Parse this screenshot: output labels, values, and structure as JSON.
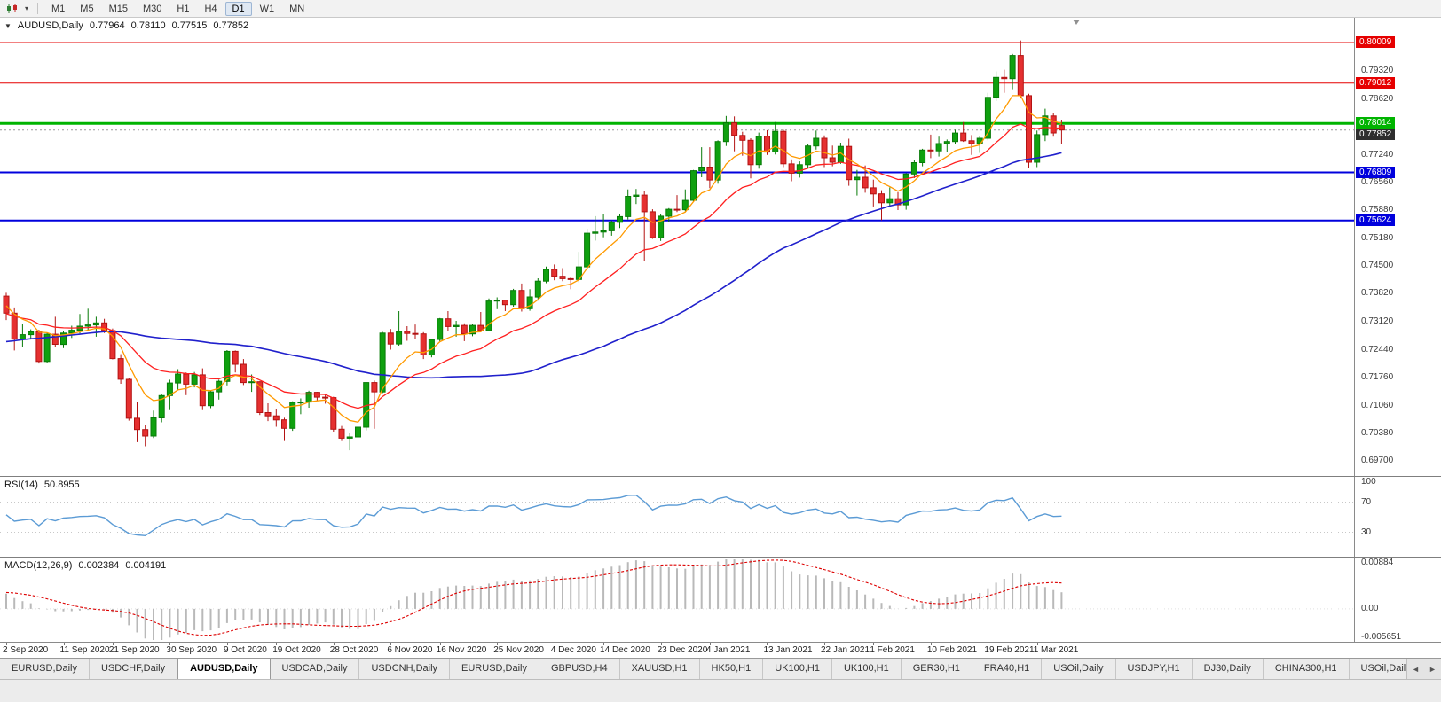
{
  "toolbar": {
    "timeframes": [
      "M1",
      "M5",
      "M15",
      "M30",
      "H1",
      "H4",
      "D1",
      "W1",
      "MN"
    ],
    "active_timeframe": "D1"
  },
  "chart": {
    "header": {
      "symbol": "AUDUSD,Daily",
      "open": "0.77964",
      "high": "0.78110",
      "low": "0.77515",
      "close": "0.77852"
    },
    "levels": [
      {
        "text": "0.80009",
        "value": 0.80009,
        "color": "#e60000",
        "width": 1
      },
      {
        "text": "0.79012",
        "value": 0.79012,
        "color": "#e60000",
        "width": 1
      },
      {
        "text": "0.78014",
        "value": 0.78014,
        "color": "#00b400",
        "width": 3
      },
      {
        "text": "0.76809",
        "value": 0.76809,
        "color": "#0000dd",
        "width": 2
      },
      {
        "text": "0.75624",
        "value": 0.75624,
        "color": "#0000dd",
        "width": 2
      }
    ],
    "bid": {
      "text": "0.77852",
      "value": 0.77852,
      "color": "#2e2e2e"
    },
    "axis_labels": [
      {
        "text": "0.79320",
        "value": 0.7932
      },
      {
        "text": "0.78620",
        "value": 0.7862
      },
      {
        "text": "0.77240",
        "value": 0.7724
      },
      {
        "text": "0.76560",
        "value": 0.7656
      },
      {
        "text": "0.75880",
        "value": 0.7588
      },
      {
        "text": "0.75180",
        "value": 0.7518
      },
      {
        "text": "0.74500",
        "value": 0.745
      },
      {
        "text": "0.73820",
        "value": 0.7382
      },
      {
        "text": "0.73120",
        "value": 0.7312
      },
      {
        "text": "0.72440",
        "value": 0.7244
      },
      {
        "text": "0.71760",
        "value": 0.7176
      },
      {
        "text": "0.71060",
        "value": 0.7106
      },
      {
        "text": "0.70380",
        "value": 0.7038
      },
      {
        "text": "0.69700",
        "value": 0.697
      }
    ]
  },
  "rsi": {
    "name": "RSI(14)",
    "value": "50.8955",
    "line_color": "#5b9bd5",
    "scale": [
      {
        "text": "100",
        "value": 100
      },
      {
        "text": "70",
        "value": 70
      },
      {
        "text": "30",
        "value": 30
      }
    ],
    "guides": [
      70,
      30
    ]
  },
  "macd": {
    "name": "MACD(12,26,9)",
    "value_main": "0.002384",
    "value_signal": "0.004191",
    "histogram_color": "#b9b9b9",
    "signal_color": "#dd0000",
    "scale": [
      {
        "text": "0.00884",
        "value": 0.00884
      },
      {
        "text": "0.00",
        "value": 0
      },
      {
        "text": "-0.005651",
        "value": -0.005651
      }
    ]
  },
  "tabs": {
    "items": [
      "EURUSD,Daily",
      "USDCHF,Daily",
      "AUDUSD,Daily",
      "USDCAD,Daily",
      "USDCNH,Daily",
      "EURUSD,Daily",
      "GBPUSD,H4",
      "XAUUSD,H1",
      "HK50,H1",
      "UK100,H1",
      "UK100,H1",
      "GER30,H1",
      "FRA40,H1",
      "USOil,Daily",
      "USDJPY,H1",
      "DJ30,Daily",
      "CHINA300,H1",
      "USOil,Daily"
    ],
    "active_index": 2
  },
  "chart_data": {
    "type": "candlestick",
    "symbol": "AUDUSD",
    "timeframe": "Daily",
    "visible_range": {
      "price_top": 0.80621,
      "price_bottom": 0.69328,
      "first_date": "2 Sep 2020",
      "last_date": "4 Mar 2021"
    },
    "x_ticks": [
      {
        "label": "2 Sep 2020",
        "i": 0
      },
      {
        "label": "11 Sep 2020",
        "i": 7
      },
      {
        "label": "21 Sep 2020",
        "i": 13
      },
      {
        "label": "30 Sep 2020",
        "i": 20
      },
      {
        "label": "9 Oct 2020",
        "i": 27
      },
      {
        "label": "19 Oct 2020",
        "i": 33
      },
      {
        "label": "28 Oct 2020",
        "i": 40
      },
      {
        "label": "6 Nov 2020",
        "i": 47
      },
      {
        "label": "16 Nov 2020",
        "i": 53
      },
      {
        "label": "25 Nov 2020",
        "i": 60
      },
      {
        "label": "4 Dec 2020",
        "i": 67
      },
      {
        "label": "14 Dec 2020",
        "i": 73
      },
      {
        "label": "23 Dec 2020",
        "i": 80
      },
      {
        "label": "4 Jan 2021",
        "i": 86
      },
      {
        "label": "13 Jan 2021",
        "i": 93
      },
      {
        "label": "22 Jan 2021",
        "i": 100
      },
      {
        "label": "1 Feb 2021",
        "i": 106
      },
      {
        "label": "10 Feb 2021",
        "i": 113
      },
      {
        "label": "19 Feb 2021",
        "i": 120
      },
      {
        "label": "1 Mar 2021",
        "i": 126
      }
    ],
    "candles": [
      [
        0.7376,
        0.7384,
        0.7317,
        0.7334
      ],
      [
        0.7334,
        0.7348,
        0.7242,
        0.727
      ],
      [
        0.727,
        0.7307,
        0.725,
        0.7281
      ],
      [
        0.7281,
        0.7294,
        0.7269,
        0.7288
      ],
      [
        0.7288,
        0.7293,
        0.721,
        0.7215
      ],
      [
        0.7215,
        0.7285,
        0.7211,
        0.7282
      ],
      [
        0.7282,
        0.7325,
        0.7251,
        0.7257
      ],
      [
        0.7257,
        0.7291,
        0.7248,
        0.7285
      ],
      [
        0.7285,
        0.7303,
        0.7273,
        0.7292
      ],
      [
        0.7292,
        0.7332,
        0.7284,
        0.7302
      ],
      [
        0.7302,
        0.7345,
        0.7289,
        0.7305
      ],
      [
        0.7305,
        0.7325,
        0.7276,
        0.731
      ],
      [
        0.731,
        0.732,
        0.7285,
        0.7291
      ],
      [
        0.7291,
        0.7296,
        0.722,
        0.7222
      ],
      [
        0.7222,
        0.7233,
        0.716,
        0.7171
      ],
      [
        0.7171,
        0.7175,
        0.7069,
        0.7075
      ],
      [
        0.7075,
        0.7115,
        0.7016,
        0.7047
      ],
      [
        0.7047,
        0.7058,
        0.7006,
        0.7031
      ],
      [
        0.7031,
        0.7094,
        0.7026,
        0.7076
      ],
      [
        0.7076,
        0.7135,
        0.7065,
        0.7131
      ],
      [
        0.7131,
        0.717,
        0.7095,
        0.7162
      ],
      [
        0.7162,
        0.7196,
        0.7145,
        0.7184
      ],
      [
        0.7184,
        0.7188,
        0.7132,
        0.7159
      ],
      [
        0.7159,
        0.7189,
        0.7151,
        0.7182
      ],
      [
        0.7182,
        0.7198,
        0.7095,
        0.7106
      ],
      [
        0.7106,
        0.7144,
        0.71,
        0.714
      ],
      [
        0.714,
        0.717,
        0.7121,
        0.7166
      ],
      [
        0.7166,
        0.7243,
        0.7156,
        0.724
      ],
      [
        0.724,
        0.7242,
        0.7188,
        0.7208
      ],
      [
        0.7208,
        0.7221,
        0.7157,
        0.7163
      ],
      [
        0.7163,
        0.7183,
        0.714,
        0.7165
      ],
      [
        0.7165,
        0.7166,
        0.7083,
        0.7089
      ],
      [
        0.7089,
        0.7112,
        0.7068,
        0.7081
      ],
      [
        0.7081,
        0.7098,
        0.7054,
        0.7071
      ],
      [
        0.7071,
        0.7076,
        0.7021,
        0.705
      ],
      [
        0.705,
        0.7117,
        0.7044,
        0.7114
      ],
      [
        0.7114,
        0.7124,
        0.7085,
        0.7115
      ],
      [
        0.7115,
        0.7143,
        0.7101,
        0.7139
      ],
      [
        0.7139,
        0.714,
        0.7119,
        0.7127
      ],
      [
        0.7127,
        0.7136,
        0.7111,
        0.7126
      ],
      [
        0.7126,
        0.7128,
        0.7042,
        0.7048
      ],
      [
        0.7048,
        0.7056,
        0.7021,
        0.7026
      ],
      [
        0.7026,
        0.7039,
        0.6996,
        0.7029
      ],
      [
        0.7029,
        0.706,
        0.7022,
        0.7053
      ],
      [
        0.7053,
        0.7164,
        0.7045,
        0.7163
      ],
      [
        0.7163,
        0.7168,
        0.7049,
        0.714
      ],
      [
        0.714,
        0.7288,
        0.7137,
        0.7285
      ],
      [
        0.7285,
        0.7295,
        0.7244,
        0.7258
      ],
      [
        0.7258,
        0.7339,
        0.7254,
        0.7289
      ],
      [
        0.7289,
        0.7302,
        0.7266,
        0.7284
      ],
      [
        0.7284,
        0.7306,
        0.727,
        0.7283
      ],
      [
        0.7283,
        0.7287,
        0.7221,
        0.7231
      ],
      [
        0.7231,
        0.727,
        0.7225,
        0.7269
      ],
      [
        0.7269,
        0.7322,
        0.7264,
        0.732
      ],
      [
        0.732,
        0.7339,
        0.7289,
        0.7301
      ],
      [
        0.7301,
        0.7315,
        0.7276,
        0.7304
      ],
      [
        0.7304,
        0.7309,
        0.7265,
        0.7283
      ],
      [
        0.7283,
        0.7307,
        0.7277,
        0.7304
      ],
      [
        0.7304,
        0.7337,
        0.7287,
        0.7291
      ],
      [
        0.7291,
        0.737,
        0.7289,
        0.7364
      ],
      [
        0.7364,
        0.7373,
        0.7344,
        0.7366
      ],
      [
        0.7366,
        0.7367,
        0.7339,
        0.7355
      ],
      [
        0.7355,
        0.7394,
        0.735,
        0.739
      ],
      [
        0.739,
        0.7407,
        0.7338,
        0.7345
      ],
      [
        0.7345,
        0.7393,
        0.734,
        0.7374
      ],
      [
        0.7374,
        0.742,
        0.7365,
        0.7413
      ],
      [
        0.7413,
        0.7449,
        0.7408,
        0.7442
      ],
      [
        0.7442,
        0.7454,
        0.7415,
        0.7425
      ],
      [
        0.7425,
        0.7445,
        0.7413,
        0.7419
      ],
      [
        0.7419,
        0.7424,
        0.7393,
        0.7417
      ],
      [
        0.7417,
        0.7485,
        0.741,
        0.7448
      ],
      [
        0.7448,
        0.7542,
        0.7442,
        0.7531
      ],
      [
        0.7531,
        0.7573,
        0.7513,
        0.7534
      ],
      [
        0.7534,
        0.7578,
        0.7521,
        0.7537
      ],
      [
        0.7537,
        0.7562,
        0.7525,
        0.7558
      ],
      [
        0.7558,
        0.7578,
        0.7544,
        0.7572
      ],
      [
        0.7572,
        0.7639,
        0.7565,
        0.7622
      ],
      [
        0.7622,
        0.764,
        0.7603,
        0.7625
      ],
      [
        0.7625,
        0.7634,
        0.7462,
        0.7584
      ],
      [
        0.7584,
        0.759,
        0.7517,
        0.752
      ],
      [
        0.752,
        0.7579,
        0.7512,
        0.7573
      ],
      [
        0.7573,
        0.7593,
        0.7558,
        0.759
      ],
      [
        0.759,
        0.7625,
        0.7583,
        0.7589
      ],
      [
        0.7589,
        0.7639,
        0.7585,
        0.7612
      ],
      [
        0.7612,
        0.7687,
        0.7608,
        0.7685
      ],
      [
        0.7685,
        0.7743,
        0.7669,
        0.7694
      ],
      [
        0.7694,
        0.7743,
        0.7642,
        0.7662
      ],
      [
        0.7662,
        0.776,
        0.7653,
        0.7757
      ],
      [
        0.7757,
        0.782,
        0.7746,
        0.7803
      ],
      [
        0.7803,
        0.7819,
        0.7733,
        0.7772
      ],
      [
        0.7772,
        0.7781,
        0.7722,
        0.776
      ],
      [
        0.776,
        0.7765,
        0.7666,
        0.77
      ],
      [
        0.77,
        0.7779,
        0.769,
        0.777
      ],
      [
        0.777,
        0.7785,
        0.7724,
        0.7731
      ],
      [
        0.7731,
        0.7805,
        0.7725,
        0.7782
      ],
      [
        0.7782,
        0.7786,
        0.7694,
        0.7702
      ],
      [
        0.7702,
        0.7713,
        0.7659,
        0.7679
      ],
      [
        0.7679,
        0.7708,
        0.7668,
        0.77
      ],
      [
        0.77,
        0.775,
        0.7692,
        0.7746
      ],
      [
        0.7746,
        0.7784,
        0.7737,
        0.7765
      ],
      [
        0.7765,
        0.7772,
        0.7694,
        0.7717
      ],
      [
        0.7717,
        0.7747,
        0.7696,
        0.7706
      ],
      [
        0.7706,
        0.7754,
        0.7702,
        0.7745
      ],
      [
        0.7745,
        0.7764,
        0.7648,
        0.7663
      ],
      [
        0.7663,
        0.7687,
        0.7624,
        0.7669
      ],
      [
        0.7669,
        0.7698,
        0.7631,
        0.7643
      ],
      [
        0.7643,
        0.7663,
        0.7597,
        0.7628
      ],
      [
        0.7628,
        0.7637,
        0.7563,
        0.7606
      ],
      [
        0.7606,
        0.7644,
        0.7597,
        0.7616
      ],
      [
        0.7616,
        0.7632,
        0.7588,
        0.7601
      ],
      [
        0.7601,
        0.7679,
        0.7589,
        0.7677
      ],
      [
        0.7677,
        0.7711,
        0.7667,
        0.7705
      ],
      [
        0.7705,
        0.7739,
        0.7696,
        0.7736
      ],
      [
        0.7736,
        0.7774,
        0.7716,
        0.7734
      ],
      [
        0.7734,
        0.7769,
        0.772,
        0.7752
      ],
      [
        0.7752,
        0.7762,
        0.773,
        0.7757
      ],
      [
        0.7757,
        0.7786,
        0.775,
        0.7778
      ],
      [
        0.7778,
        0.7805,
        0.7756,
        0.7759
      ],
      [
        0.7759,
        0.7773,
        0.7724,
        0.7752
      ],
      [
        0.7752,
        0.7771,
        0.7729,
        0.7765
      ],
      [
        0.7765,
        0.7877,
        0.776,
        0.7866
      ],
      [
        0.7866,
        0.793,
        0.7857,
        0.7915
      ],
      [
        0.7915,
        0.7934,
        0.7877,
        0.7912
      ],
      [
        0.7912,
        0.7973,
        0.7886,
        0.7969
      ],
      [
        0.7969,
        0.8006,
        0.7863,
        0.787
      ],
      [
        0.787,
        0.7875,
        0.7692,
        0.7706
      ],
      [
        0.7706,
        0.7784,
        0.7694,
        0.7774
      ],
      [
        0.7774,
        0.7838,
        0.7758,
        0.782
      ],
      [
        0.782,
        0.7827,
        0.7769,
        0.7778
      ],
      [
        0.77964,
        0.7811,
        0.77515,
        0.77852
      ]
    ],
    "moving_averages": [
      {
        "period": 7,
        "method": "ema",
        "color": "#ff9a00"
      },
      {
        "period": 18,
        "method": "ema",
        "color": "#ff2020"
      },
      {
        "period": 50,
        "method": "sma",
        "color": "#2020cc"
      }
    ],
    "colors": {
      "up": "#0fa00f",
      "up_stroke": "#077a07",
      "down": "#e53030",
      "down_stroke": "#b31212"
    }
  }
}
